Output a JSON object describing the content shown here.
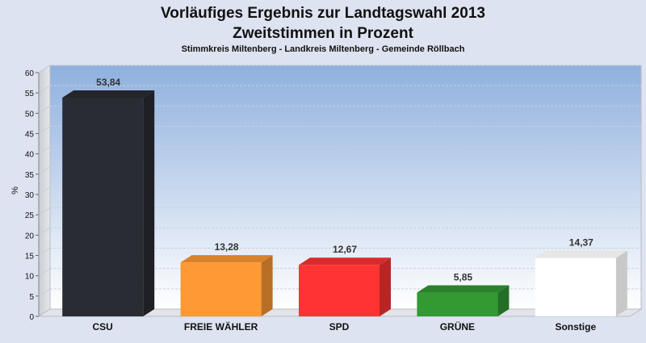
{
  "chart_data": {
    "type": "bar",
    "title": "Vorläufiges Ergebnis zur Landtagswahl 2013",
    "subtitle": "Zweitstimmen in Prozent",
    "caption": "Stimmkreis Miltenberg - Landkreis Miltenberg - Gemeinde Röllbach",
    "ylabel": "%",
    "xlabel": "",
    "ylim": [
      0,
      60
    ],
    "yticks": [
      0,
      5,
      10,
      15,
      20,
      25,
      30,
      35,
      40,
      45,
      50,
      55,
      60
    ],
    "categories": [
      "CSU",
      "FREIE WÄHLER",
      "SPD",
      "GRÜNE",
      "Sonstige"
    ],
    "values": [
      53.84,
      13.28,
      12.67,
      5.85,
      14.37
    ],
    "value_labels": [
      "53,84",
      "13,28",
      "12,67",
      "5,85",
      "14,37"
    ],
    "colors": [
      "#2a2c33",
      "#ff9933",
      "#ff3333",
      "#339933",
      "#ffffff"
    ],
    "grid": true,
    "legend": "none"
  }
}
